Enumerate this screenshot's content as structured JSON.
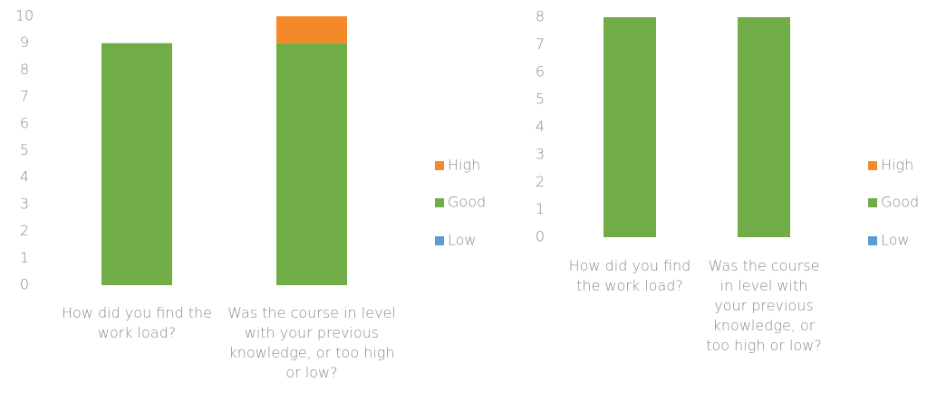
{
  "chart_data": [
    {
      "type": "stacked_bar",
      "categories": [
        "How did you find the work load?",
        "Was the course in level with your previous knowledge, or too high or low?"
      ],
      "series": [
        {
          "name": "Low",
          "color": "#5b9bd5",
          "values": [
            0,
            0
          ]
        },
        {
          "name": "Good",
          "color": "#70ad47",
          "values": [
            9,
            9
          ]
        },
        {
          "name": "High",
          "color": "#f4892a",
          "values": [
            0,
            1
          ]
        }
      ],
      "ylim": [
        0,
        10
      ],
      "yticks": [
        0,
        1,
        2,
        3,
        4,
        5,
        6,
        7,
        8,
        9,
        10
      ]
    },
    {
      "type": "stacked_bar",
      "categories": [
        "How did you find the work load?",
        "Was the course in level with your previous knowledge, or too high or low?"
      ],
      "series": [
        {
          "name": "Low",
          "color": "#5b9bd5",
          "values": [
            0,
            0
          ]
        },
        {
          "name": "Good",
          "color": "#70ad47",
          "values": [
            8,
            8
          ]
        },
        {
          "name": "High",
          "color": "#f4892a",
          "values": [
            0,
            0
          ]
        }
      ],
      "ylim": [
        0,
        8
      ],
      "yticks": [
        0,
        1,
        2,
        3,
        4,
        5,
        6,
        7,
        8
      ]
    }
  ]
}
